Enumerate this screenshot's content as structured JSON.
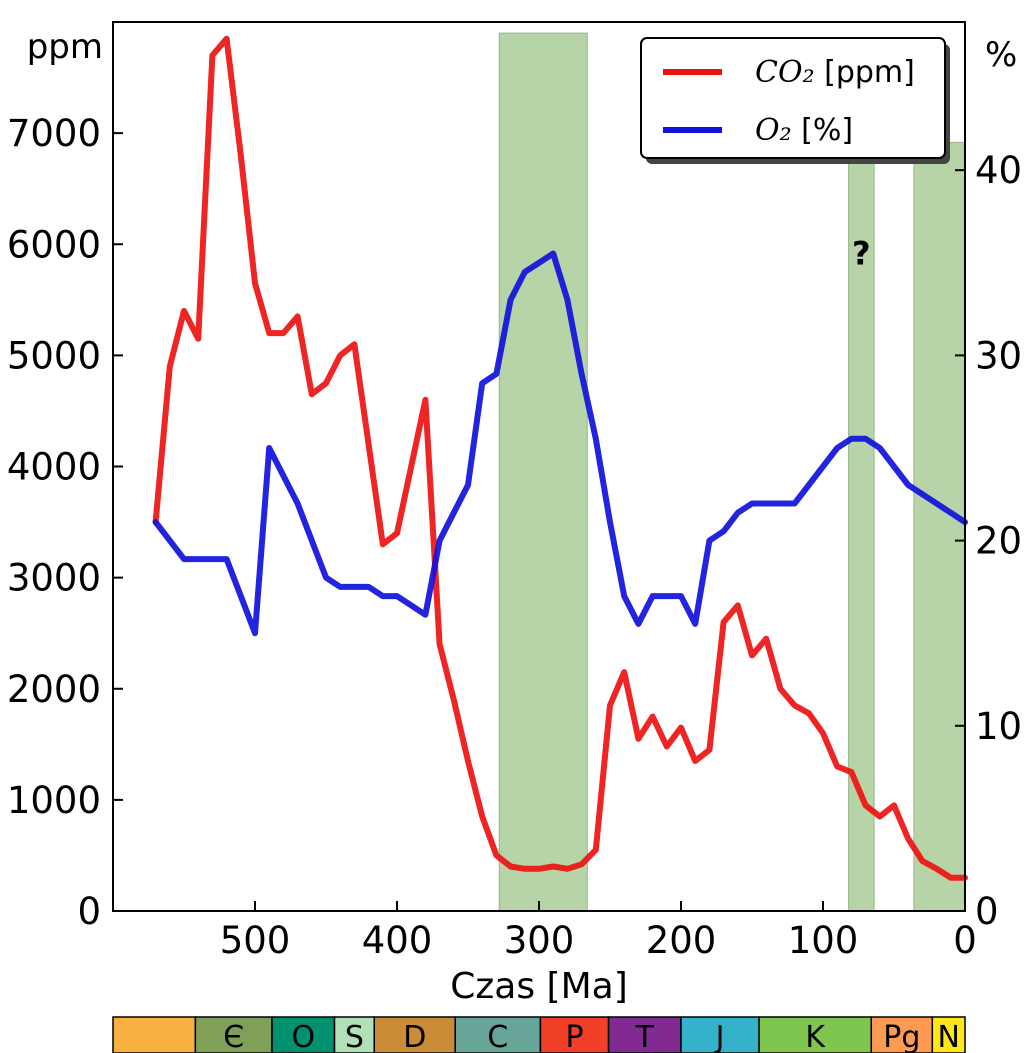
{
  "chart_data": {
    "type": "line",
    "xlabel": "Czas [Ma]",
    "x_reversed": true,
    "xlim": [
      0,
      600
    ],
    "x_ticks": [
      500,
      400,
      300,
      200,
      100,
      0
    ],
    "left_axis": {
      "unit": "ppm",
      "lim": [
        0,
        8000
      ],
      "ticks": [
        0,
        1000,
        2000,
        3000,
        4000,
        5000,
        6000,
        7000
      ]
    },
    "right_axis": {
      "unit": "%",
      "lim": [
        0,
        48
      ],
      "ticks": [
        0,
        10,
        20,
        30,
        40
      ]
    },
    "legend_placement": "top-right",
    "grid": false,
    "series": [
      {
        "name": "CO2 [ppm]",
        "legend_math": "CO₂",
        "legend_suffix": " [ppm]",
        "axis": "left",
        "color": "#ee1111",
        "points": [
          [
            570,
            3500
          ],
          [
            560,
            4900
          ],
          [
            550,
            5400
          ],
          [
            540,
            5150
          ],
          [
            530,
            7700
          ],
          [
            520,
            7850
          ],
          [
            510,
            6800
          ],
          [
            500,
            5650
          ],
          [
            490,
            5200
          ],
          [
            480,
            5200
          ],
          [
            470,
            5350
          ],
          [
            460,
            4650
          ],
          [
            450,
            4750
          ],
          [
            440,
            5000
          ],
          [
            430,
            5100
          ],
          [
            420,
            4200
          ],
          [
            410,
            3300
          ],
          [
            400,
            3400
          ],
          [
            390,
            4000
          ],
          [
            380,
            4600
          ],
          [
            370,
            2400
          ],
          [
            360,
            1900
          ],
          [
            350,
            1350
          ],
          [
            340,
            850
          ],
          [
            330,
            500
          ],
          [
            320,
            400
          ],
          [
            310,
            380
          ],
          [
            300,
            380
          ],
          [
            290,
            400
          ],
          [
            280,
            380
          ],
          [
            270,
            420
          ],
          [
            260,
            550
          ],
          [
            250,
            1850
          ],
          [
            240,
            2150
          ],
          [
            230,
            1550
          ],
          [
            220,
            1750
          ],
          [
            210,
            1480
          ],
          [
            200,
            1650
          ],
          [
            190,
            1350
          ],
          [
            180,
            1450
          ],
          [
            170,
            2600
          ],
          [
            160,
            2750
          ],
          [
            150,
            2300
          ],
          [
            140,
            2450
          ],
          [
            130,
            2000
          ],
          [
            120,
            1850
          ],
          [
            110,
            1780
          ],
          [
            100,
            1600
          ],
          [
            90,
            1300
          ],
          [
            80,
            1250
          ],
          [
            70,
            950
          ],
          [
            60,
            850
          ],
          [
            50,
            950
          ],
          [
            40,
            650
          ],
          [
            30,
            450
          ],
          [
            20,
            380
          ],
          [
            10,
            300
          ],
          [
            0,
            300
          ]
        ]
      },
      {
        "name": "O2 [%]",
        "legend_math": "O₂",
        "legend_suffix": " [%]",
        "axis": "right",
        "color": "#1111dd",
        "points": [
          [
            570,
            21
          ],
          [
            560,
            20
          ],
          [
            550,
            19
          ],
          [
            540,
            19
          ],
          [
            530,
            19
          ],
          [
            520,
            19
          ],
          [
            510,
            17
          ],
          [
            500,
            15
          ],
          [
            490,
            25
          ],
          [
            480,
            23.5
          ],
          [
            470,
            22
          ],
          [
            460,
            20
          ],
          [
            450,
            18
          ],
          [
            440,
            17.5
          ],
          [
            430,
            17.5
          ],
          [
            420,
            17.5
          ],
          [
            410,
            17
          ],
          [
            400,
            17
          ],
          [
            390,
            16.5
          ],
          [
            380,
            16
          ],
          [
            370,
            20
          ],
          [
            360,
            21.5
          ],
          [
            350,
            23
          ],
          [
            340,
            28.5
          ],
          [
            330,
            29
          ],
          [
            320,
            33
          ],
          [
            310,
            34.5
          ],
          [
            300,
            35
          ],
          [
            290,
            35.5
          ],
          [
            280,
            33
          ],
          [
            270,
            29
          ],
          [
            260,
            25.5
          ],
          [
            250,
            21
          ],
          [
            240,
            17
          ],
          [
            230,
            15.5
          ],
          [
            220,
            17
          ],
          [
            210,
            17
          ],
          [
            200,
            17
          ],
          [
            190,
            15.5
          ],
          [
            180,
            20
          ],
          [
            170,
            20.5
          ],
          [
            160,
            21.5
          ],
          [
            150,
            22
          ],
          [
            140,
            22
          ],
          [
            130,
            22
          ],
          [
            120,
            22
          ],
          [
            110,
            23
          ],
          [
            100,
            24
          ],
          [
            90,
            25
          ],
          [
            80,
            25.5
          ],
          [
            70,
            25.5
          ],
          [
            60,
            25
          ],
          [
            50,
            24
          ],
          [
            40,
            23
          ],
          [
            30,
            22.5
          ],
          [
            20,
            22
          ],
          [
            10,
            21.5
          ],
          [
            0,
            21
          ]
        ]
      }
    ],
    "shaded_bands": [
      {
        "from": 328,
        "to": 266,
        "top_ppm": 7900
      },
      {
        "from": 82,
        "to": 64,
        "top_pct": 41.5,
        "note": "?"
      },
      {
        "from": 36,
        "to": 0,
        "top_pct": 41.5
      }
    ],
    "band_color": "#b7d4a8",
    "periods": [
      {
        "label": "",
        "from": 600,
        "to": 542,
        "color": "#f8b040"
      },
      {
        "label": "Є",
        "from": 542,
        "to": 488,
        "color": "#7fa056"
      },
      {
        "label": "O",
        "from": 488,
        "to": 444,
        "color": "#009270"
      },
      {
        "label": "S",
        "from": 444,
        "to": 416,
        "color": "#b3e1b6"
      },
      {
        "label": "D",
        "from": 416,
        "to": 359,
        "color": "#cb8c37"
      },
      {
        "label": "C",
        "from": 359,
        "to": 299,
        "color": "#67a599"
      },
      {
        "label": "P",
        "from": 299,
        "to": 251,
        "color": "#f04028"
      },
      {
        "label": "T",
        "from": 251,
        "to": 200,
        "color": "#812b92"
      },
      {
        "label": "J",
        "from": 200,
        "to": 145,
        "color": "#34b2c9"
      },
      {
        "label": "K",
        "from": 145,
        "to": 66,
        "color": "#7fc64e"
      },
      {
        "label": "Pg",
        "from": 66,
        "to": 23,
        "color": "#fd9a52"
      },
      {
        "label": "N",
        "from": 23,
        "to": 0,
        "color": "#ffe619"
      }
    ]
  }
}
